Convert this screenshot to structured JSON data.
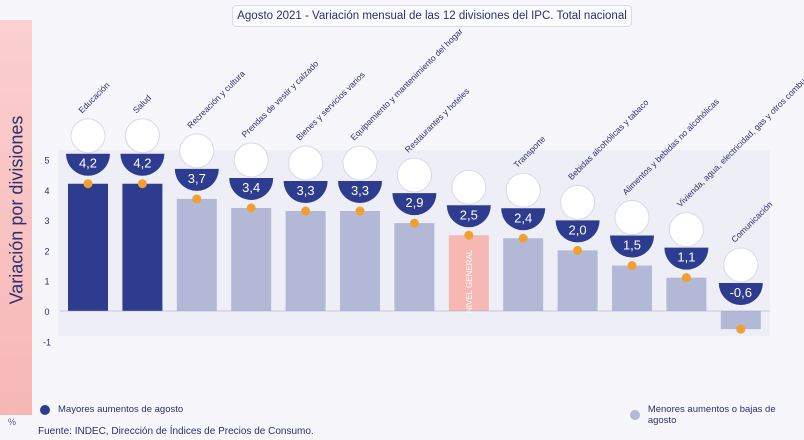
{
  "chart_data": {
    "type": "bar",
    "title": "Agosto 2021 - Variación mensual de las 12 divisiones del IPC. Total nacional",
    "ylabel": "Variación por divisiones",
    "unit": "%",
    "ylim": [
      -1,
      5
    ],
    "yticks": [
      "5",
      "4",
      "3",
      "2",
      "1",
      "0",
      "-1"
    ],
    "categories": [
      "Educación",
      "Salud",
      "Recreación y cultura",
      "Prendas de vestir y calzado",
      "Bienes y servicios varios",
      "Equipamiento y mantenimiento del hogar",
      "Restaurantes y hoteles",
      "NIVEL GENERAL",
      "Transporte",
      "Bebidas alcohólicas y tabaco",
      "Alimentos y bebidas no alcohólicas",
      "Vivienda, agua, electricidad, gas y otros combustibles",
      "Comunicación"
    ],
    "values": [
      4.2,
      4.2,
      3.7,
      3.4,
      3.3,
      3.3,
      2.9,
      2.5,
      2.4,
      2.0,
      1.5,
      1.1,
      -0.6
    ],
    "value_labels": [
      "4,2",
      "4,2",
      "3,7",
      "3,4",
      "3,3",
      "3,3",
      "2,9",
      "2,5",
      "2,4",
      "2,0",
      "1,5",
      "1,1",
      "-0,6"
    ],
    "groups": [
      "top",
      "top",
      "low",
      "low",
      "low",
      "low",
      "low",
      "general",
      "low",
      "low",
      "low",
      "low",
      "low"
    ],
    "general_bar_label": "NIVEL GENERAL",
    "colors": {
      "top": "#2d3c8f",
      "low": "#b3b8d6",
      "general": "#f5b8b3",
      "marker": "#f0a030",
      "badge": "#2d3c8f"
    },
    "legend": [
      {
        "label": "Mayores aumentos de agosto",
        "color": "#2d3c8f"
      },
      {
        "label": "Menores aumentos o bajas de agosto",
        "color": "#b3b8d6"
      }
    ],
    "source": "Fuente: INDEC, Dirección de Índices de Precios de Consumo."
  }
}
